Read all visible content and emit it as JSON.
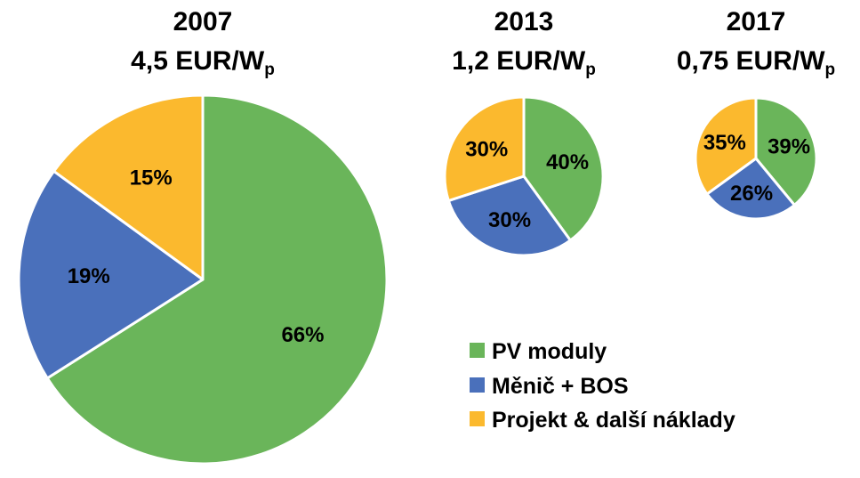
{
  "chart_data": [
    {
      "type": "pie",
      "title_year": "2007",
      "title_price": "4,5 EUR/W",
      "title_unit_sub": "p",
      "categories": [
        "PV moduly",
        "Měnič + BOS",
        "Projekt & další náklady"
      ],
      "values": [
        66,
        19,
        15
      ],
      "labels": [
        "66%",
        "19%",
        "15%"
      ]
    },
    {
      "type": "pie",
      "title_year": "2013",
      "title_price": "1,2 EUR/W",
      "title_unit_sub": "p",
      "categories": [
        "PV moduly",
        "Měnič + BOS",
        "Projekt & další náklady"
      ],
      "values": [
        40,
        30,
        30
      ],
      "labels": [
        "40%",
        "30%",
        "30%"
      ]
    },
    {
      "type": "pie",
      "title_year": "2017",
      "title_price": "0,75 EUR/W",
      "title_unit_sub": "p",
      "categories": [
        "PV moduly",
        "Měnič + BOS",
        "Projekt & další náklady"
      ],
      "values": [
        39,
        26,
        35
      ],
      "labels": [
        "39%",
        "26%",
        "35%"
      ]
    }
  ],
  "legend": {
    "items": [
      {
        "label": "PV moduly",
        "color": "#6ab55a"
      },
      {
        "label": "Měnič + BOS",
        "color": "#4a70bb"
      },
      {
        "label": "Projekt & další náklady",
        "color": "#fbb92e"
      }
    ],
    "position": "bottom-right"
  },
  "colors": [
    "#6ab55a",
    "#4a70bb",
    "#fbb92e"
  ]
}
